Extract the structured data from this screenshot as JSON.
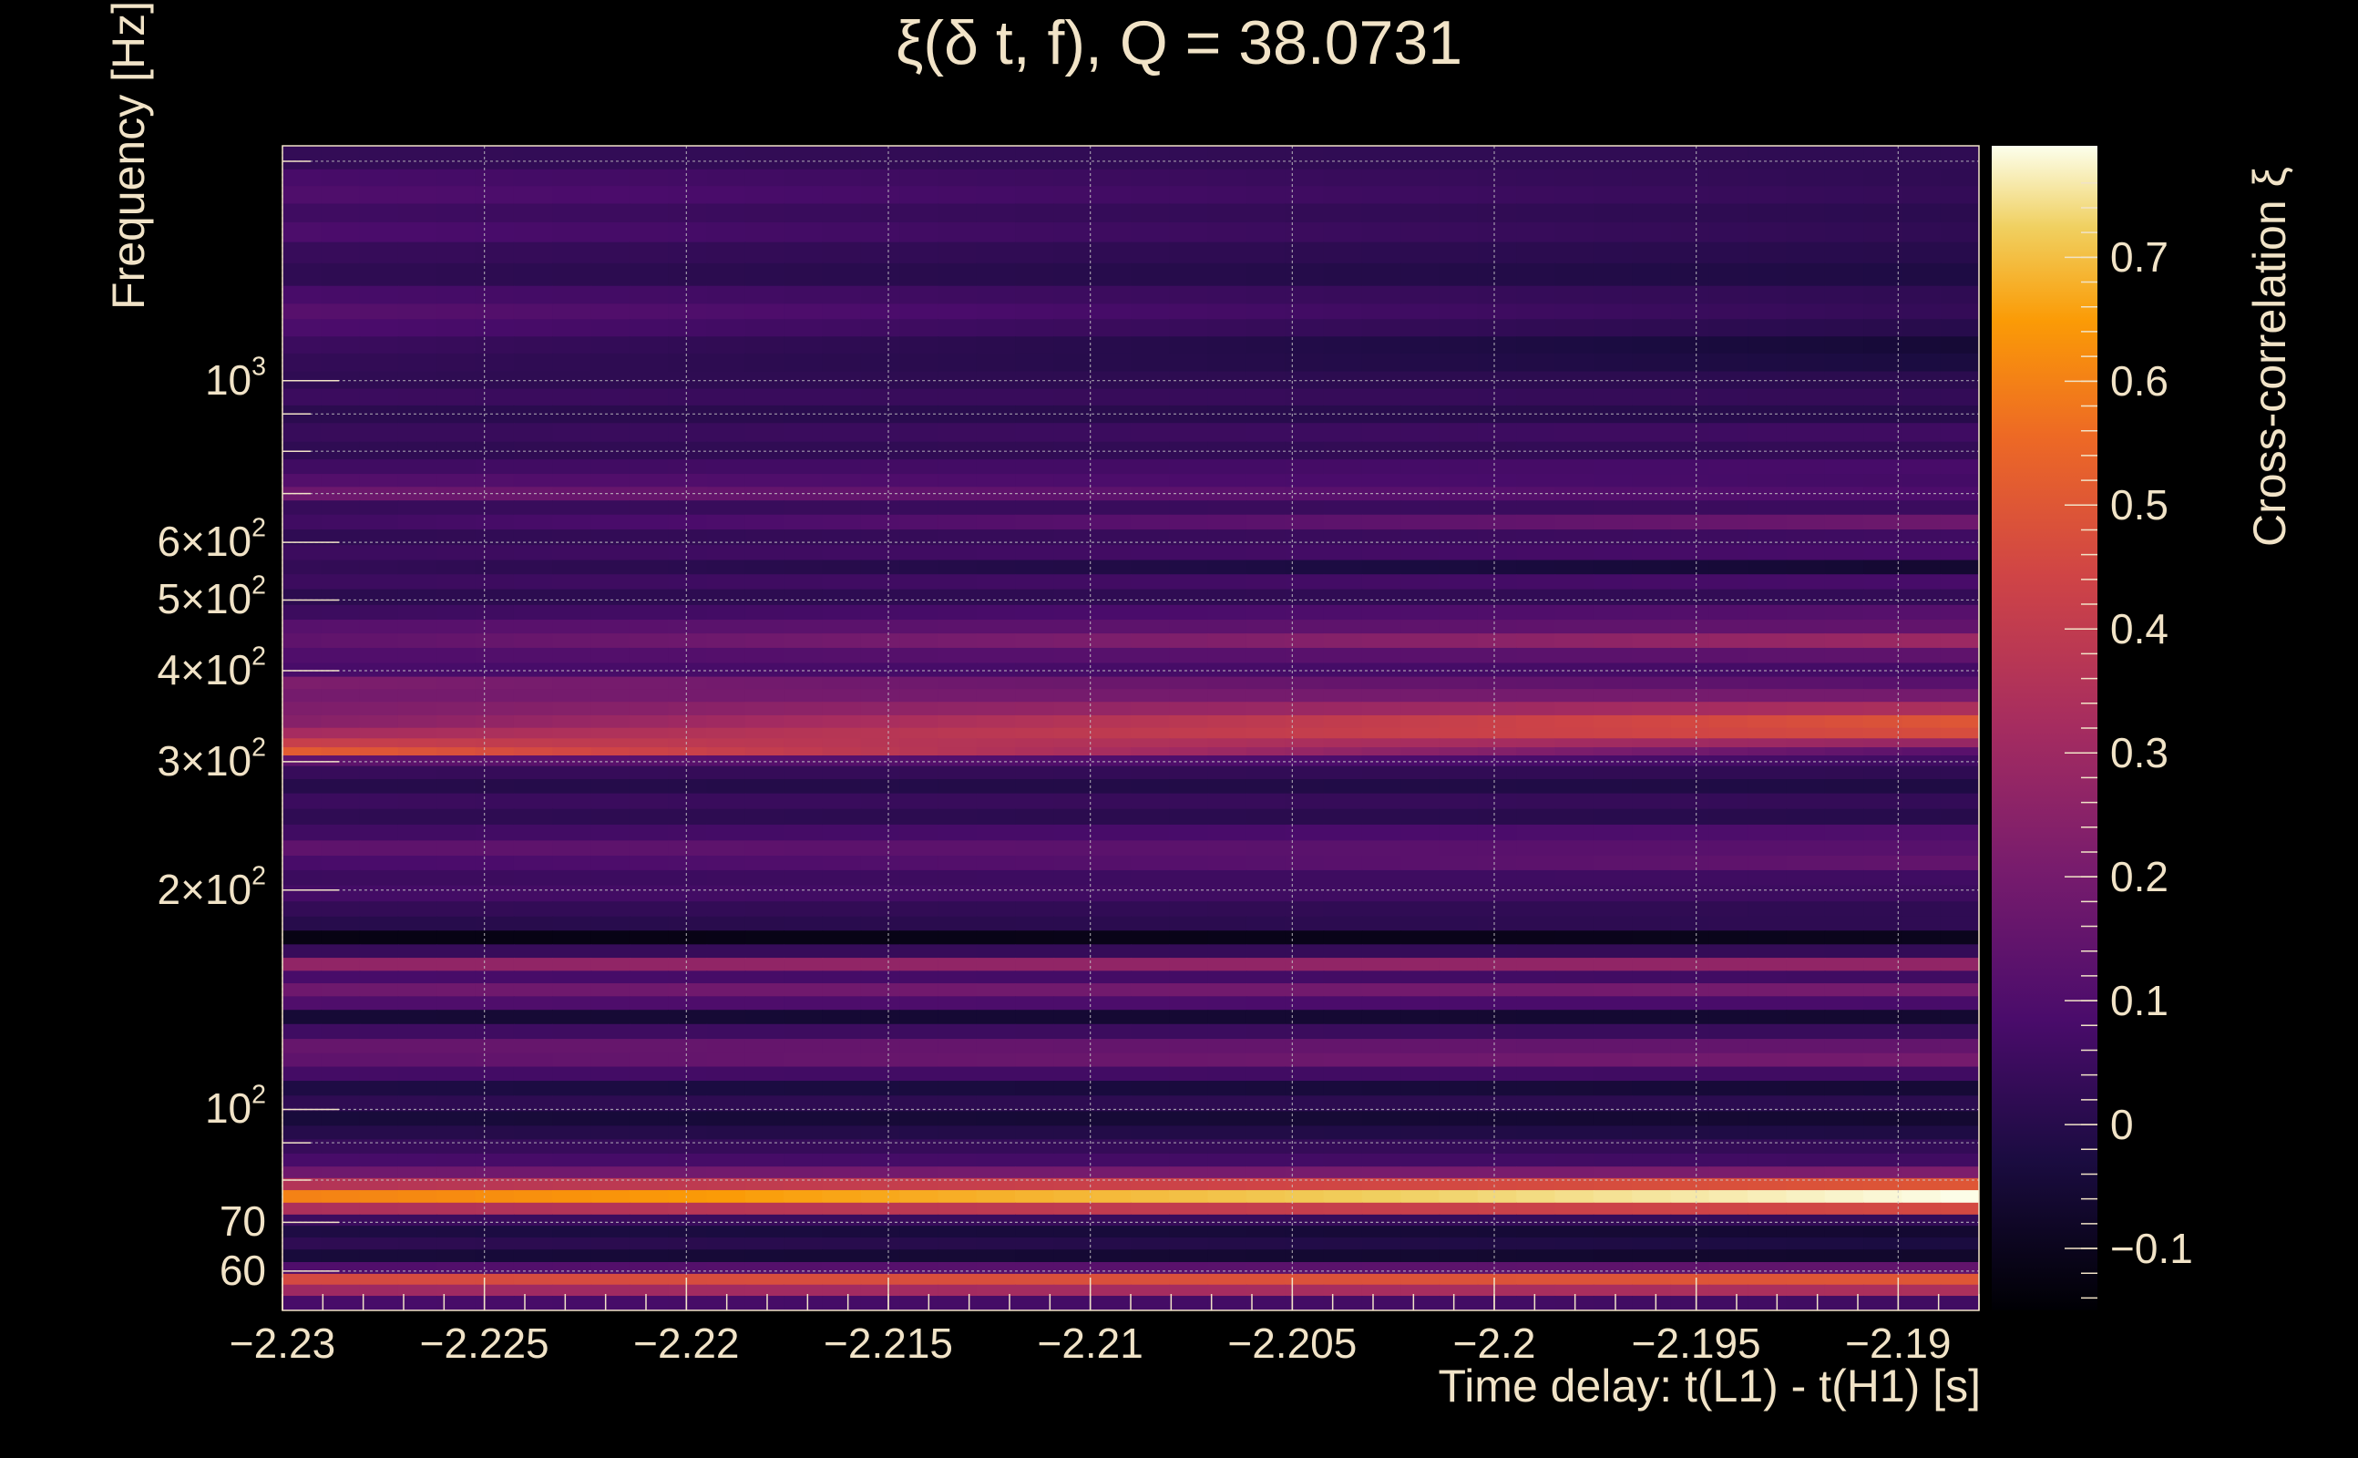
{
  "chart_data": {
    "type": "heatmap",
    "title": "ξ(δ t, f), Q = 38.0731",
    "xlabel": "Time delay: t(L1) - t(H1) [s]",
    "ylabel": "Frequency [Hz]",
    "zlabel": "Cross-correlation ξ",
    "xlim": [
      -2.23,
      -2.188
    ],
    "ylim": [
      53,
      2100
    ],
    "yscale": "log",
    "zlim": [
      -0.15,
      0.79
    ],
    "grid": true,
    "colormap": "inferno",
    "x_ticks": [
      {
        "value": -2.23,
        "label": "−2.23"
      },
      {
        "value": -2.225,
        "label": "−2.225"
      },
      {
        "value": -2.22,
        "label": "−2.22"
      },
      {
        "value": -2.215,
        "label": "−2.215"
      },
      {
        "value": -2.21,
        "label": "−2.21"
      },
      {
        "value": -2.205,
        "label": "−2.205"
      },
      {
        "value": -2.2,
        "label": "−2.2"
      },
      {
        "value": -2.195,
        "label": "−2.195"
      },
      {
        "value": -2.19,
        "label": "−2.19"
      }
    ],
    "y_ticks": [
      {
        "value": 60,
        "mant": "60",
        "exp": ""
      },
      {
        "value": 70,
        "mant": "70",
        "exp": ""
      },
      {
        "value": 100,
        "mant": "10",
        "exp": "2"
      },
      {
        "value": 200,
        "mant": "2×10",
        "exp": "2"
      },
      {
        "value": 300,
        "mant": "3×10",
        "exp": "2"
      },
      {
        "value": 400,
        "mant": "4×10",
        "exp": "2"
      },
      {
        "value": 500,
        "mant": "5×10",
        "exp": "2"
      },
      {
        "value": 600,
        "mant": "6×10",
        "exp": "2"
      },
      {
        "value": 1000,
        "mant": "10",
        "exp": "3"
      }
    ],
    "z_ticks": [
      {
        "value": 0.7,
        "label": "0.7"
      },
      {
        "value": 0.6,
        "label": "0.6"
      },
      {
        "value": 0.5,
        "label": "0.5"
      },
      {
        "value": 0.4,
        "label": "0.4"
      },
      {
        "value": 0.3,
        "label": "0.3"
      },
      {
        "value": 0.2,
        "label": "0.2"
      },
      {
        "value": 0.1,
        "label": "0.1"
      },
      {
        "value": 0,
        "label": "0"
      },
      {
        "value": -0.1,
        "label": "−0.1"
      }
    ],
    "bands": [
      {
        "f": 2000,
        "start": 0.03,
        "end": 0.02
      },
      {
        "f": 1900,
        "start": 0.08,
        "end": 0.02
      },
      {
        "f": 1800,
        "start": 0.1,
        "end": 0.03
      },
      {
        "f": 1700,
        "start": 0.06,
        "end": 0.01
      },
      {
        "f": 1600,
        "start": 0.09,
        "end": 0.02
      },
      {
        "f": 1500,
        "start": 0.04,
        "end": 0.0
      },
      {
        "f": 1400,
        "start": 0.02,
        "end": -0.02
      },
      {
        "f": 1300,
        "start": 0.08,
        "end": 0.02
      },
      {
        "f": 1250,
        "start": 0.12,
        "end": 0.03
      },
      {
        "f": 1180,
        "start": 0.09,
        "end": 0.0
      },
      {
        "f": 1120,
        "start": 0.05,
        "end": -0.05
      },
      {
        "f": 1060,
        "start": 0.03,
        "end": -0.03
      },
      {
        "f": 1000,
        "start": 0.02,
        "end": 0.01
      },
      {
        "f": 950,
        "start": 0.05,
        "end": 0.03
      },
      {
        "f": 900,
        "start": 0.01,
        "end": 0.0
      },
      {
        "f": 850,
        "start": 0.04,
        "end": 0.06
      },
      {
        "f": 800,
        "start": 0.02,
        "end": 0.03
      },
      {
        "f": 760,
        "start": 0.06,
        "end": 0.08
      },
      {
        "f": 730,
        "start": 0.11,
        "end": 0.07
      },
      {
        "f": 700,
        "start": 0.18,
        "end": 0.09
      },
      {
        "f": 670,
        "start": 0.04,
        "end": 0.05
      },
      {
        "f": 640,
        "start": 0.06,
        "end": 0.18
      },
      {
        "f": 610,
        "start": 0.02,
        "end": 0.06
      },
      {
        "f": 580,
        "start": 0.05,
        "end": 0.08
      },
      {
        "f": 555,
        "start": 0.03,
        "end": -0.06
      },
      {
        "f": 530,
        "start": 0.05,
        "end": 0.08
      },
      {
        "f": 505,
        "start": 0.01,
        "end": 0.03
      },
      {
        "f": 480,
        "start": 0.05,
        "end": 0.12
      },
      {
        "f": 460,
        "start": 0.12,
        "end": 0.15
      },
      {
        "f": 440,
        "start": 0.14,
        "end": 0.3
      },
      {
        "f": 420,
        "start": 0.1,
        "end": 0.14
      },
      {
        "f": 400,
        "start": 0.08,
        "end": 0.07
      },
      {
        "f": 385,
        "start": 0.22,
        "end": 0.12
      },
      {
        "f": 370,
        "start": 0.2,
        "end": 0.2
      },
      {
        "f": 355,
        "start": 0.22,
        "end": 0.34
      },
      {
        "f": 340,
        "start": 0.24,
        "end": 0.5
      },
      {
        "f": 328,
        "start": 0.32,
        "end": 0.47
      },
      {
        "f": 318,
        "start": 0.42,
        "end": 0.28
      },
      {
        "f": 310,
        "start": 0.52,
        "end": 0.12
      },
      {
        "f": 302,
        "start": 0.14,
        "end": 0.06
      },
      {
        "f": 290,
        "start": 0.04,
        "end": 0.02
      },
      {
        "f": 278,
        "start": 0.0,
        "end": -0.02
      },
      {
        "f": 265,
        "start": 0.05,
        "end": 0.03
      },
      {
        "f": 252,
        "start": 0.02,
        "end": 0.0
      },
      {
        "f": 240,
        "start": 0.06,
        "end": 0.1
      },
      {
        "f": 228,
        "start": 0.14,
        "end": 0.12
      },
      {
        "f": 218,
        "start": 0.08,
        "end": 0.15
      },
      {
        "f": 208,
        "start": 0.05,
        "end": 0.06
      },
      {
        "f": 198,
        "start": 0.07,
        "end": 0.05
      },
      {
        "f": 188,
        "start": 0.03,
        "end": 0.02
      },
      {
        "f": 180,
        "start": 0.0,
        "end": 0.02
      },
      {
        "f": 172,
        "start": -0.12,
        "end": -0.1
      },
      {
        "f": 165,
        "start": 0.04,
        "end": 0.03
      },
      {
        "f": 158,
        "start": 0.27,
        "end": 0.27
      },
      {
        "f": 152,
        "start": 0.08,
        "end": 0.06
      },
      {
        "f": 146,
        "start": 0.18,
        "end": 0.2
      },
      {
        "f": 140,
        "start": 0.1,
        "end": 0.08
      },
      {
        "f": 134,
        "start": -0.05,
        "end": -0.06
      },
      {
        "f": 128,
        "start": 0.06,
        "end": 0.04
      },
      {
        "f": 122,
        "start": 0.16,
        "end": 0.15
      },
      {
        "f": 117,
        "start": 0.14,
        "end": 0.2
      },
      {
        "f": 112,
        "start": 0.07,
        "end": 0.06
      },
      {
        "f": 107,
        "start": -0.02,
        "end": -0.05
      },
      {
        "f": 102,
        "start": 0.02,
        "end": 0.01
      },
      {
        "f": 97,
        "start": -0.04,
        "end": -0.06
      },
      {
        "f": 93,
        "start": 0.0,
        "end": -0.02
      },
      {
        "f": 89,
        "start": 0.04,
        "end": 0.03
      },
      {
        "f": 85,
        "start": 0.08,
        "end": 0.06
      },
      {
        "f": 82,
        "start": 0.18,
        "end": 0.22
      },
      {
        "f": 79,
        "start": 0.36,
        "end": 0.5
      },
      {
        "f": 76,
        "start": 0.6,
        "end": 0.79
      },
      {
        "f": 73,
        "start": 0.34,
        "end": 0.46
      },
      {
        "f": 70.5,
        "start": 0.05,
        "end": 0.03
      },
      {
        "f": 68,
        "start": -0.02,
        "end": -0.06
      },
      {
        "f": 65.5,
        "start": 0.02,
        "end": -0.03
      },
      {
        "f": 63,
        "start": -0.04,
        "end": -0.07
      },
      {
        "f": 60.5,
        "start": 0.1,
        "end": 0.15
      },
      {
        "f": 58.5,
        "start": 0.46,
        "end": 0.5
      },
      {
        "f": 56.5,
        "start": 0.3,
        "end": 0.34
      },
      {
        "f": 54.5,
        "start": 0.08,
        "end": 0.06
      }
    ]
  }
}
